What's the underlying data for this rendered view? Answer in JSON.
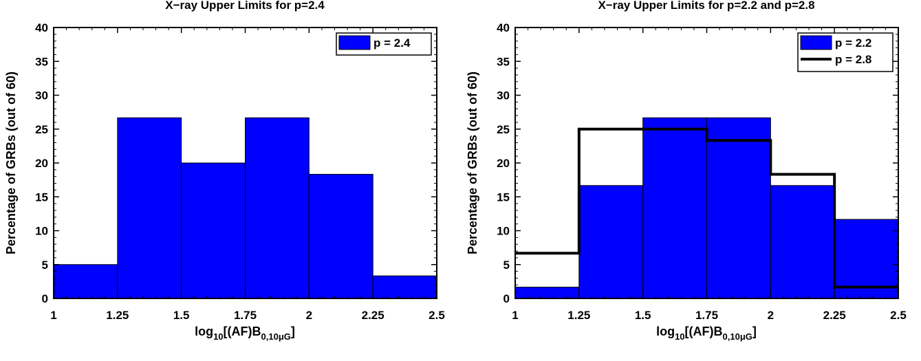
{
  "colors": {
    "bar_fill": "#0000ff",
    "bar_edge": "#000000",
    "step_line": "#000000",
    "background": "#ffffff"
  },
  "chart_data": [
    {
      "type": "bar",
      "title": "X−ray Upper Limits for p=2.4",
      "ylabel": "Percentage of GRBs (out of 60)",
      "xlabel": {
        "base": "log",
        "base_sub": "10",
        "mid": "[(AF)B",
        "sub": "0,10μG",
        "end": "]"
      },
      "bin_edges": [
        1,
        1.25,
        1.5,
        1.75,
        2,
        2.25,
        2.5
      ],
      "xlim": [
        1,
        2.5
      ],
      "ylim": [
        0,
        40
      ],
      "xticks": [
        "1",
        "1.25",
        "1.5",
        "1.75",
        "2",
        "2.25",
        "2.5"
      ],
      "yticks": [
        "0",
        "5",
        "10",
        "15",
        "20",
        "25",
        "30",
        "35",
        "40"
      ],
      "legend_position": "top-right",
      "series": [
        {
          "name": "p = 2.4",
          "style": "bar",
          "values": [
            5,
            26.67,
            20,
            26.67,
            18.33,
            3.33
          ]
        }
      ]
    },
    {
      "type": "bar",
      "title": "X−ray Upper Limits for p=2.2 and p=2.8",
      "ylabel": "Percentage of GRBs (out of 60)",
      "xlabel": {
        "base": "log",
        "base_sub": "10",
        "mid": "[(AF)B",
        "sub": "0,10μG",
        "end": "]"
      },
      "bin_edges": [
        1,
        1.25,
        1.5,
        1.75,
        2,
        2.25,
        2.5
      ],
      "xlim": [
        1,
        2.5
      ],
      "ylim": [
        0,
        40
      ],
      "xticks": [
        "1",
        "1.25",
        "1.5",
        "1.75",
        "2",
        "2.25",
        "2.5"
      ],
      "yticks": [
        "0",
        "5",
        "10",
        "15",
        "20",
        "25",
        "30",
        "35",
        "40"
      ],
      "legend_position": "top-right",
      "series": [
        {
          "name": "p = 2.2",
          "style": "bar",
          "values": [
            1.67,
            16.67,
            26.67,
            26.67,
            16.67,
            11.67
          ]
        },
        {
          "name": "p = 2.8",
          "style": "step",
          "values": [
            6.67,
            25,
            25,
            23.33,
            18.33,
            1.67
          ]
        }
      ]
    }
  ]
}
